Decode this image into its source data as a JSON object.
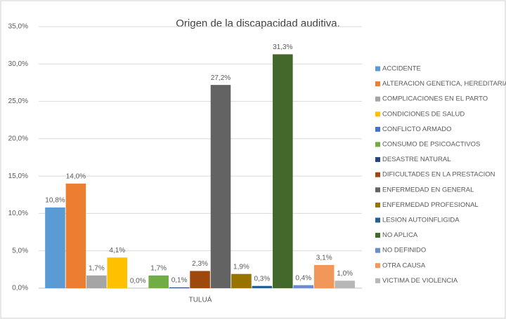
{
  "chart_data": {
    "type": "bar",
    "title": "Origen de la discapacidad auditiva.",
    "categories": [
      "TULUÁ"
    ],
    "ylim": [
      0,
      35
    ],
    "yticks": [
      {
        "value": 0,
        "label": "0,0%"
      },
      {
        "value": 5,
        "label": "5,0%"
      },
      {
        "value": 10,
        "label": "10,0%"
      },
      {
        "value": 15,
        "label": "15,0%"
      },
      {
        "value": 20,
        "label": "20,0%"
      },
      {
        "value": 25,
        "label": "25,0%"
      },
      {
        "value": 30,
        "label": "30,0%"
      },
      {
        "value": 35,
        "label": "35,0%"
      }
    ],
    "grid": true,
    "legend": "right",
    "series": [
      {
        "name": "ACCIDENTE",
        "color": "#5b9bd5",
        "values": [
          10.8
        ],
        "value_labels": [
          "10,8%"
        ]
      },
      {
        "name": "ALTERACION GENETICA, HEREDITARIA",
        "color": "#ed7d31",
        "values": [
          14.0
        ],
        "value_labels": [
          "14,0%"
        ]
      },
      {
        "name": "COMPLICACIONES EN EL PARTO",
        "color": "#a5a5a5",
        "values": [
          1.7
        ],
        "value_labels": [
          "1,7%"
        ]
      },
      {
        "name": "CONDICIONES DE SALUD",
        "color": "#ffc000",
        "values": [
          4.1
        ],
        "value_labels": [
          "4,1%"
        ]
      },
      {
        "name": "CONFLICTO ARMADO",
        "color": "#4472c4",
        "values": [
          0.0
        ],
        "value_labels": [
          "0,0%"
        ]
      },
      {
        "name": "CONSUMO DE PSICOACTIVOS",
        "color": "#70ad47",
        "values": [
          1.7
        ],
        "value_labels": [
          "1,7%"
        ]
      },
      {
        "name": "DESASTRE NATURAL",
        "color": "#264478",
        "values": [
          0.1
        ],
        "value_labels": [
          "0,1%"
        ]
      },
      {
        "name": "DIFICULTADES EN LA PRESTACION",
        "color": "#9e480e",
        "values": [
          2.3
        ],
        "value_labels": [
          "2,3%"
        ]
      },
      {
        "name": "ENFERMEDAD EN GENERAL",
        "color": "#636363",
        "values": [
          27.2
        ],
        "value_labels": [
          "27,2%"
        ]
      },
      {
        "name": "ENFERMEDAD PROFESIONAL",
        "color": "#997300",
        "values": [
          1.9
        ],
        "value_labels": [
          "1,9%"
        ]
      },
      {
        "name": "LESION AUTOINFLIGIDA",
        "color": "#255e91",
        "values": [
          0.3
        ],
        "value_labels": [
          "0,3%"
        ]
      },
      {
        "name": "NO APLICA",
        "color": "#43682b",
        "values": [
          31.3
        ],
        "value_labels": [
          "31,3%"
        ]
      },
      {
        "name": "NO DEFINIDO",
        "color": "#698ed0",
        "values": [
          0.4
        ],
        "value_labels": [
          "0,4%"
        ]
      },
      {
        "name": "OTRA CAUSA",
        "color": "#f1975a",
        "values": [
          3.1
        ],
        "value_labels": [
          "3,1%"
        ]
      },
      {
        "name": "VICTIMA DE VIOLENCIA",
        "color": "#b7b7b7",
        "values": [
          1.0
        ],
        "value_labels": [
          "1,0%"
        ]
      }
    ]
  }
}
